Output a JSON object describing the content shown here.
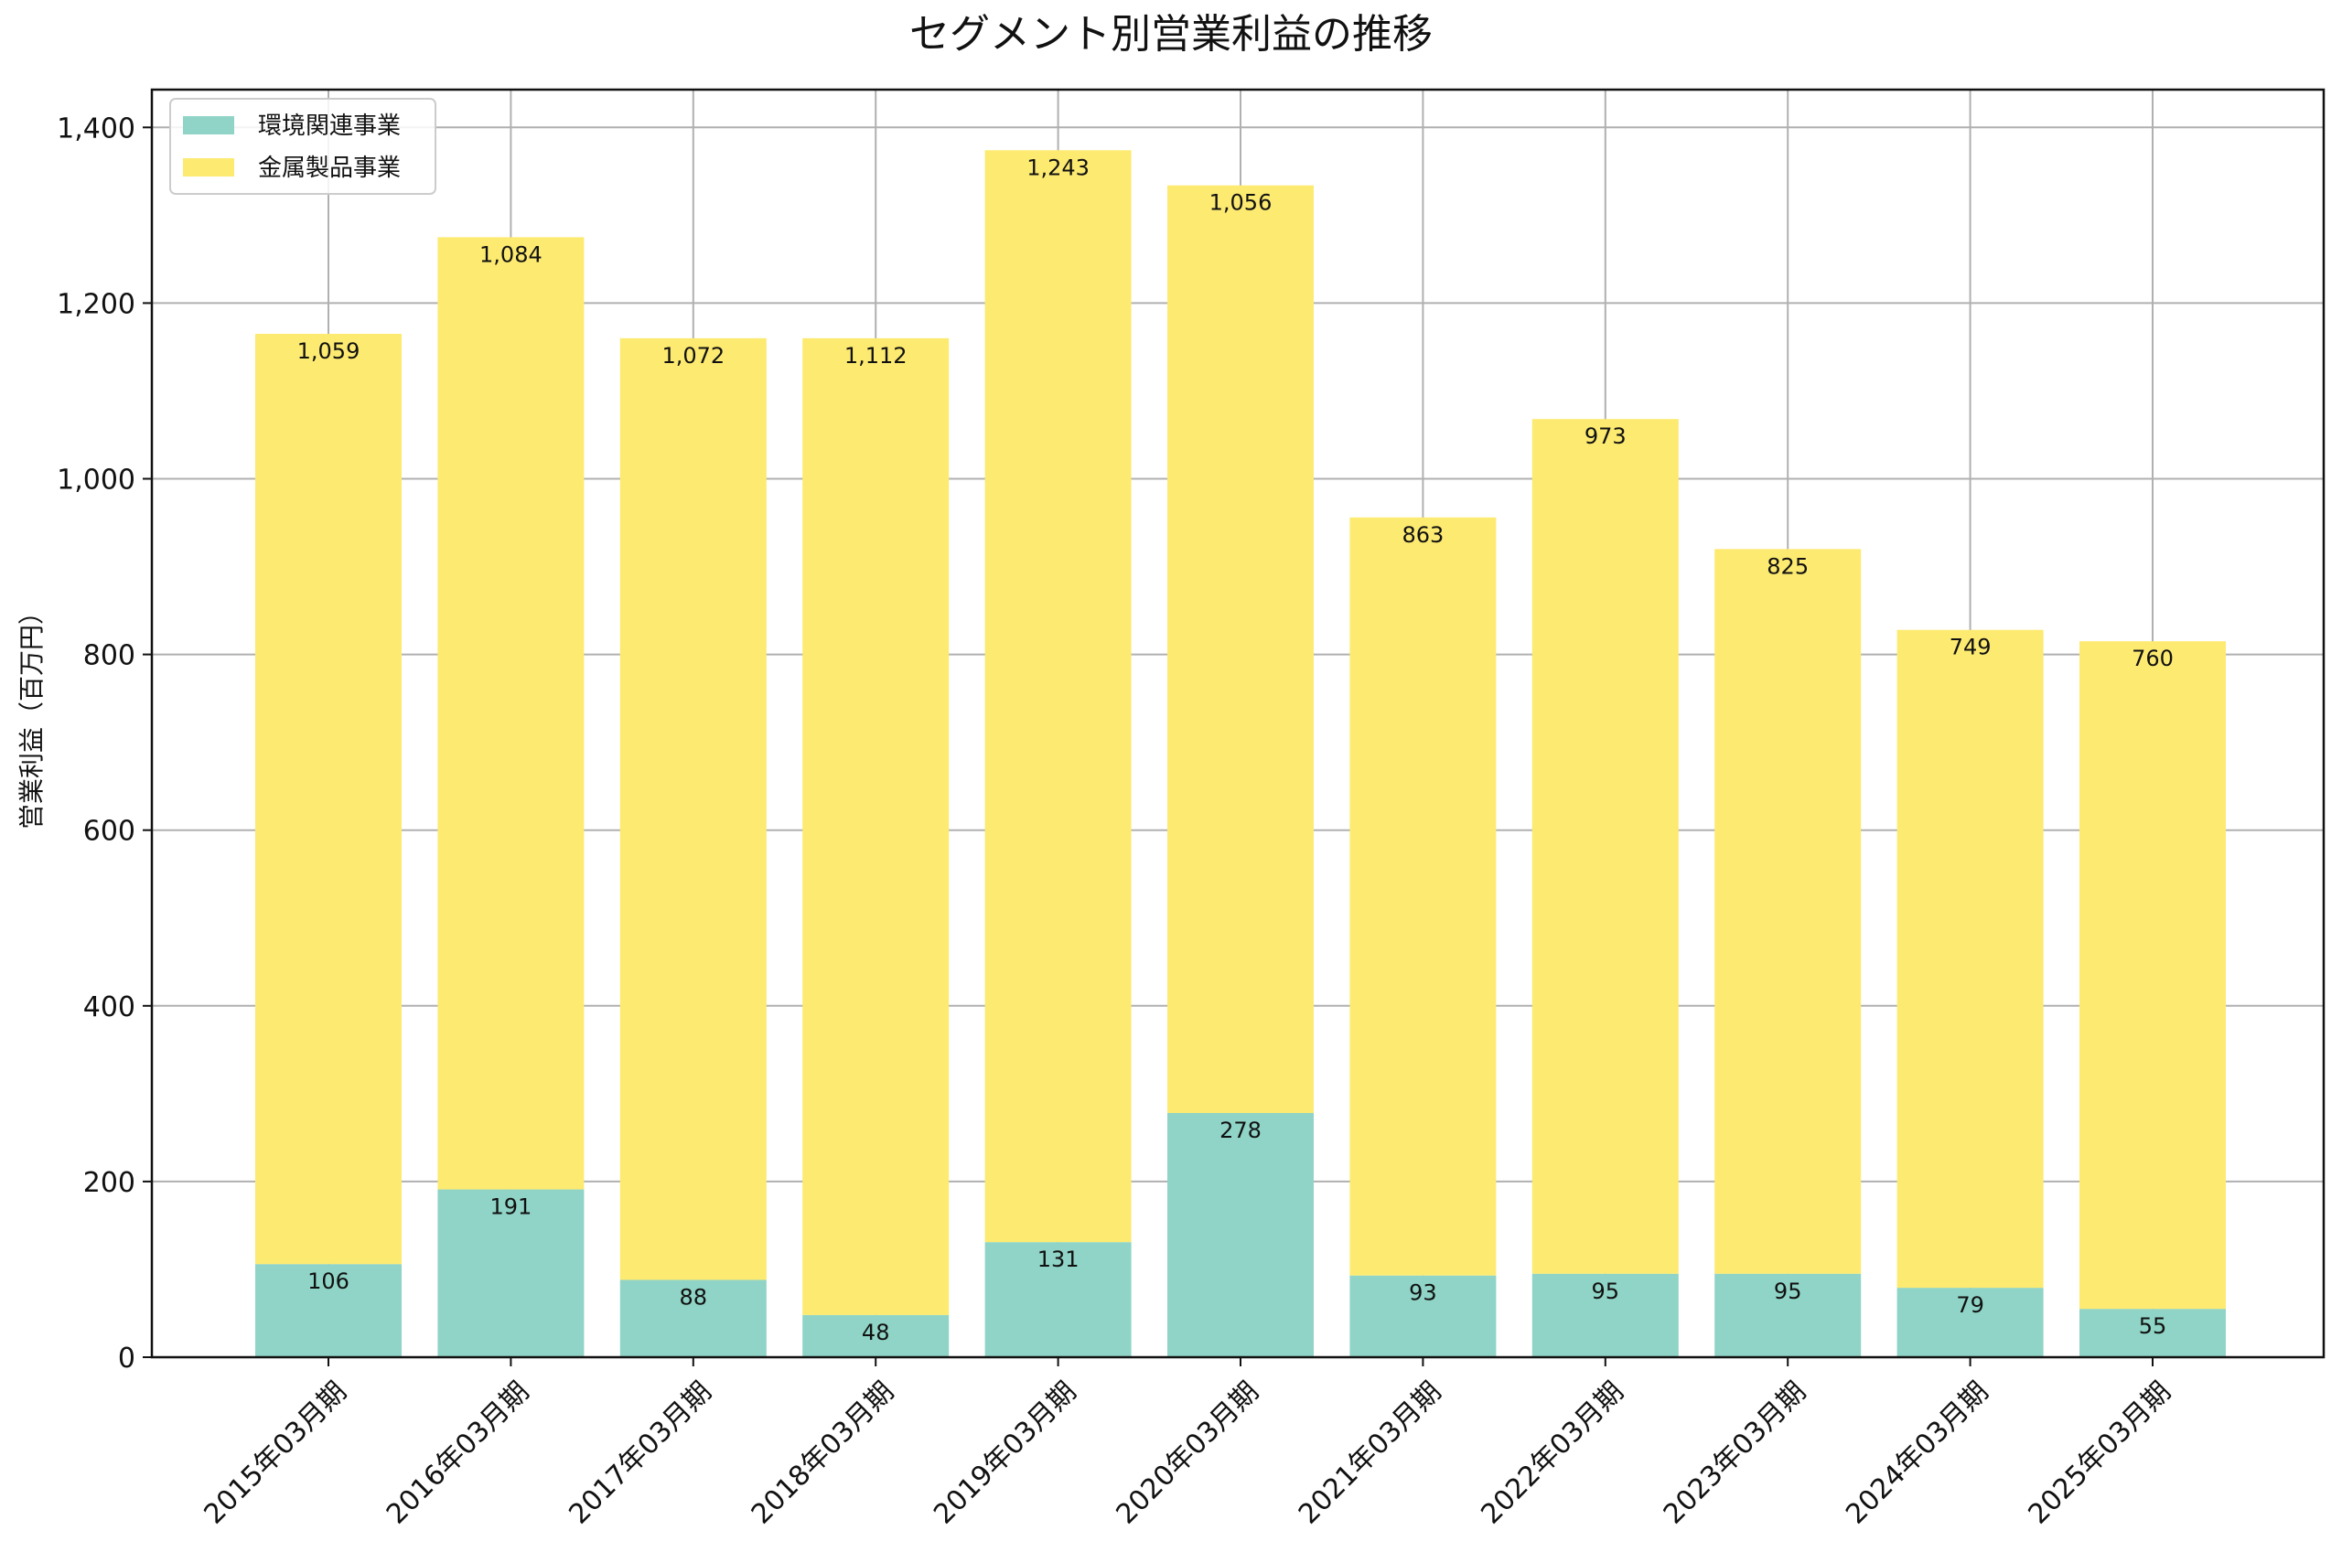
{
  "chart_data": {
    "type": "bar",
    "stacked": true,
    "title": "セグメント別営業利益の推移",
    "xlabel": "",
    "ylabel": "営業利益（百万円）",
    "ylim": [
      0,
      1443
    ],
    "yticks": [
      0,
      200,
      400,
      600,
      800,
      1000,
      1200,
      1400
    ],
    "ytick_labels": [
      "0",
      "200",
      "400",
      "600",
      "800",
      "1,000",
      "1,200",
      "1,400"
    ],
    "grid": true,
    "legend_position": "top-left",
    "categories": [
      "2015年03月期",
      "2016年03月期",
      "2017年03月期",
      "2018年03月期",
      "2019年03月期",
      "2020年03月期",
      "2021年03月期",
      "2022年03月期",
      "2023年03月期",
      "2024年03月期",
      "2025年03月期"
    ],
    "series": [
      {
        "name": "環境関連事業",
        "color": "#8fd4c6",
        "values": [
          106,
          191,
          88,
          48,
          131,
          278,
          93,
          95,
          95,
          79,
          55
        ],
        "labels": [
          "106",
          "191",
          "88",
          "48",
          "131",
          "278",
          "93",
          "95",
          "95",
          "79",
          "55"
        ]
      },
      {
        "name": "金属製品事業",
        "color": "#fdea71",
        "values": [
          1059,
          1084,
          1072,
          1112,
          1243,
          1056,
          863,
          973,
          825,
          749,
          760
        ],
        "labels": [
          "1,059",
          "1,084",
          "1,072",
          "1,112",
          "1,243",
          "1,056",
          "863",
          "973",
          "825",
          "749",
          "760"
        ]
      }
    ]
  }
}
